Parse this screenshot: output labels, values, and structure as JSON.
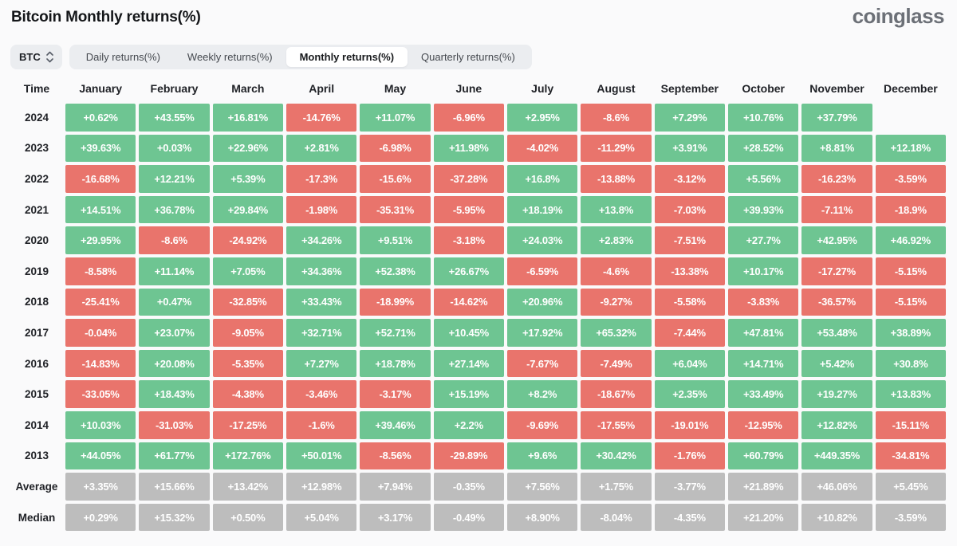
{
  "page": {
    "title": "Bitcoin Monthly returns(%)",
    "brand": "coinglass"
  },
  "controls": {
    "symbol_select": {
      "value": "BTC"
    },
    "tabs": [
      {
        "label": "Daily returns(%)",
        "active": false
      },
      {
        "label": "Weekly returns(%)",
        "active": false
      },
      {
        "label": "Monthly returns(%)",
        "active": true
      },
      {
        "label": "Quarterly returns(%)",
        "active": false
      }
    ]
  },
  "colors": {
    "positive": "#6ec592",
    "negative": "#e9746c",
    "stat": "#bdbdbd"
  },
  "table": {
    "header": [
      "Time",
      "January",
      "February",
      "March",
      "April",
      "May",
      "June",
      "July",
      "August",
      "September",
      "October",
      "November",
      "December"
    ],
    "rows": [
      {
        "label": "2024",
        "type": "year",
        "values": [
          "+0.62%",
          "+43.55%",
          "+16.81%",
          "-14.76%",
          "+11.07%",
          "-6.96%",
          "+2.95%",
          "-8.6%",
          "+7.29%",
          "+10.76%",
          "+37.79%",
          null
        ]
      },
      {
        "label": "2023",
        "type": "year",
        "values": [
          "+39.63%",
          "+0.03%",
          "+22.96%",
          "+2.81%",
          "-6.98%",
          "+11.98%",
          "-4.02%",
          "-11.29%",
          "+3.91%",
          "+28.52%",
          "+8.81%",
          "+12.18%"
        ]
      },
      {
        "label": "2022",
        "type": "year",
        "values": [
          "-16.68%",
          "+12.21%",
          "+5.39%",
          "-17.3%",
          "-15.6%",
          "-37.28%",
          "+16.8%",
          "-13.88%",
          "-3.12%",
          "+5.56%",
          "-16.23%",
          "-3.59%"
        ]
      },
      {
        "label": "2021",
        "type": "year",
        "values": [
          "+14.51%",
          "+36.78%",
          "+29.84%",
          "-1.98%",
          "-35.31%",
          "-5.95%",
          "+18.19%",
          "+13.8%",
          "-7.03%",
          "+39.93%",
          "-7.11%",
          "-18.9%"
        ]
      },
      {
        "label": "2020",
        "type": "year",
        "values": [
          "+29.95%",
          "-8.6%",
          "-24.92%",
          "+34.26%",
          "+9.51%",
          "-3.18%",
          "+24.03%",
          "+2.83%",
          "-7.51%",
          "+27.7%",
          "+42.95%",
          "+46.92%"
        ]
      },
      {
        "label": "2019",
        "type": "year",
        "values": [
          "-8.58%",
          "+11.14%",
          "+7.05%",
          "+34.36%",
          "+52.38%",
          "+26.67%",
          "-6.59%",
          "-4.6%",
          "-13.38%",
          "+10.17%",
          "-17.27%",
          "-5.15%"
        ]
      },
      {
        "label": "2018",
        "type": "year",
        "values": [
          "-25.41%",
          "+0.47%",
          "-32.85%",
          "+33.43%",
          "-18.99%",
          "-14.62%",
          "+20.96%",
          "-9.27%",
          "-5.58%",
          "-3.83%",
          "-36.57%",
          "-5.15%"
        ]
      },
      {
        "label": "2017",
        "type": "year",
        "values": [
          "-0.04%",
          "+23.07%",
          "-9.05%",
          "+32.71%",
          "+52.71%",
          "+10.45%",
          "+17.92%",
          "+65.32%",
          "-7.44%",
          "+47.81%",
          "+53.48%",
          "+38.89%"
        ]
      },
      {
        "label": "2016",
        "type": "year",
        "values": [
          "-14.83%",
          "+20.08%",
          "-5.35%",
          "+7.27%",
          "+18.78%",
          "+27.14%",
          "-7.67%",
          "-7.49%",
          "+6.04%",
          "+14.71%",
          "+5.42%",
          "+30.8%"
        ]
      },
      {
        "label": "2015",
        "type": "year",
        "values": [
          "-33.05%",
          "+18.43%",
          "-4.38%",
          "-3.46%",
          "-3.17%",
          "+15.19%",
          "+8.2%",
          "-18.67%",
          "+2.35%",
          "+33.49%",
          "+19.27%",
          "+13.83%"
        ]
      },
      {
        "label": "2014",
        "type": "year",
        "values": [
          "+10.03%",
          "-31.03%",
          "-17.25%",
          "-1.6%",
          "+39.46%",
          "+2.2%",
          "-9.69%",
          "-17.55%",
          "-19.01%",
          "-12.95%",
          "+12.82%",
          "-15.11%"
        ]
      },
      {
        "label": "2013",
        "type": "year",
        "values": [
          "+44.05%",
          "+61.77%",
          "+172.76%",
          "+50.01%",
          "-8.56%",
          "-29.89%",
          "+9.6%",
          "+30.42%",
          "-1.76%",
          "+60.79%",
          "+449.35%",
          "-34.81%"
        ]
      },
      {
        "label": "Average",
        "type": "stat",
        "values": [
          "+3.35%",
          "+15.66%",
          "+13.42%",
          "+12.98%",
          "+7.94%",
          "-0.35%",
          "+7.56%",
          "+1.75%",
          "-3.77%",
          "+21.89%",
          "+46.06%",
          "+5.45%"
        ]
      },
      {
        "label": "Median",
        "type": "stat",
        "values": [
          "+0.29%",
          "+15.32%",
          "+0.50%",
          "+5.04%",
          "+3.17%",
          "-0.49%",
          "+8.90%",
          "-8.04%",
          "-4.35%",
          "+21.20%",
          "+10.82%",
          "-3.59%"
        ]
      }
    ]
  }
}
